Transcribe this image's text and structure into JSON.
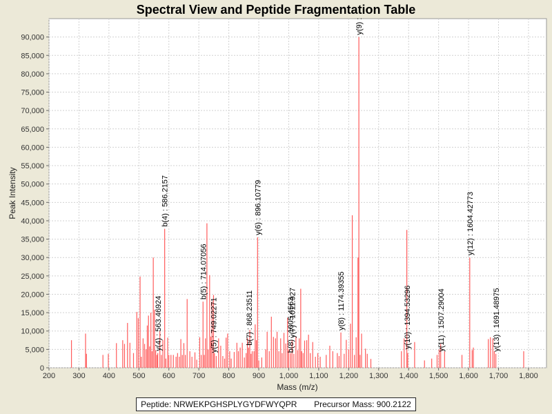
{
  "chart_data": {
    "type": "bar",
    "title": "Spectral View and Peptide Fragmentation Table",
    "xlabel": "Mass (m/z)",
    "ylabel": "Peak Intensity",
    "xlim": [
      200,
      1860
    ],
    "ylim": [
      0,
      95000
    ],
    "grid": true,
    "x_ticks": [
      200,
      300,
      400,
      500,
      600,
      700,
      800,
      900,
      1000,
      1100,
      1200,
      1300,
      1400,
      1500,
      1600,
      1700,
      1800
    ],
    "x_tick_labels": [
      "200",
      "300",
      "400",
      "500",
      "600",
      "700",
      "800",
      "900",
      "1,000",
      "1,100",
      "1,200",
      "1,300",
      "1,400",
      "1,500",
      "1,600",
      "1,700",
      "1,800"
    ],
    "y_ticks": [
      0,
      5000,
      10000,
      15000,
      20000,
      25000,
      30000,
      35000,
      40000,
      45000,
      50000,
      55000,
      60000,
      65000,
      70000,
      75000,
      80000,
      85000,
      90000
    ],
    "y_tick_labels": [
      "0",
      "5,000",
      "10,000",
      "15,000",
      "20,000",
      "25,000",
      "30,000",
      "35,000",
      "40,000",
      "45,000",
      "50,000",
      "55,000",
      "60,000",
      "65,000",
      "70,000",
      "75,000",
      "80,000",
      "85,000",
      "90,000"
    ],
    "peak_color": "#ff5a5a",
    "peaks": [
      [
        275,
        7500
      ],
      [
        322,
        9300
      ],
      [
        325,
        3800
      ],
      [
        380,
        3500
      ],
      [
        398,
        3800
      ],
      [
        425,
        6700
      ],
      [
        446,
        7500
      ],
      [
        452,
        6500
      ],
      [
        462,
        12200
      ],
      [
        470,
        6800
      ],
      [
        482,
        4000
      ],
      [
        493,
        15200
      ],
      [
        498,
        13500
      ],
      [
        504,
        24800
      ],
      [
        508,
        3000
      ],
      [
        514,
        8000
      ],
      [
        519,
        6500
      ],
      [
        524,
        5000
      ],
      [
        528,
        11500
      ],
      [
        532,
        14200
      ],
      [
        536,
        5800
      ],
      [
        540,
        15000
      ],
      [
        544,
        4500
      ],
      [
        548,
        30000
      ],
      [
        552,
        15800
      ],
      [
        556,
        4800
      ],
      [
        560,
        3500
      ],
      [
        563,
        4000
      ],
      [
        570,
        10000
      ],
      [
        575,
        3500
      ],
      [
        580,
        7500
      ],
      [
        586,
        37800
      ],
      [
        590,
        2500
      ],
      [
        596,
        8200
      ],
      [
        600,
        3500
      ],
      [
        607,
        3500
      ],
      [
        615,
        3500
      ],
      [
        624,
        3000
      ],
      [
        629,
        4000
      ],
      [
        635,
        3000
      ],
      [
        640,
        7800
      ],
      [
        645,
        3500
      ],
      [
        650,
        6700
      ],
      [
        655,
        3500
      ],
      [
        661,
        18700
      ],
      [
        670,
        4500
      ],
      [
        677,
        3000
      ],
      [
        687,
        4200
      ],
      [
        693,
        2200
      ],
      [
        703,
        8300
      ],
      [
        708,
        3500
      ],
      [
        714,
        18000
      ],
      [
        718,
        3500
      ],
      [
        722,
        8000
      ],
      [
        727,
        39300
      ],
      [
        731,
        5000
      ],
      [
        736,
        25200
      ],
      [
        740,
        8500
      ],
      [
        744,
        18000
      ],
      [
        749,
        19800
      ],
      [
        752,
        4000
      ],
      [
        758,
        3200
      ],
      [
        766,
        8000
      ],
      [
        773,
        6000
      ],
      [
        780,
        3200
      ],
      [
        786,
        2500
      ],
      [
        791,
        8200
      ],
      [
        796,
        9300
      ],
      [
        803,
        4500
      ],
      [
        808,
        2500
      ],
      [
        818,
        4300
      ],
      [
        827,
        6800
      ],
      [
        832,
        4500
      ],
      [
        838,
        5500
      ],
      [
        845,
        6800
      ],
      [
        852,
        2800
      ],
      [
        858,
        4000
      ],
      [
        862,
        8100
      ],
      [
        866,
        5500
      ],
      [
        870,
        10300
      ],
      [
        874,
        3800
      ],
      [
        878,
        4500
      ],
      [
        884,
        4500
      ],
      [
        888,
        11800
      ],
      [
        892,
        7500
      ],
      [
        896,
        35500
      ],
      [
        900,
        2000
      ],
      [
        910,
        2800
      ],
      [
        923,
        5000
      ],
      [
        928,
        9800
      ],
      [
        935,
        4500
      ],
      [
        942,
        13900
      ],
      [
        949,
        8400
      ],
      [
        956,
        8000
      ],
      [
        961,
        9800
      ],
      [
        967,
        4500
      ],
      [
        973,
        8000
      ],
      [
        978,
        4000
      ],
      [
        984,
        9500
      ],
      [
        990,
        6600
      ],
      [
        996,
        13600
      ],
      [
        1000,
        5000
      ],
      [
        1006,
        4000
      ],
      [
        1011,
        7500
      ],
      [
        1017,
        3800
      ],
      [
        1024,
        8500
      ],
      [
        1030,
        4800
      ],
      [
        1035,
        8000
      ],
      [
        1040,
        21500
      ],
      [
        1043,
        4500
      ],
      [
        1048,
        4000
      ],
      [
        1053,
        7400
      ],
      [
        1060,
        7500
      ],
      [
        1066,
        9000
      ],
      [
        1072,
        4000
      ],
      [
        1080,
        7000
      ],
      [
        1089,
        3000
      ],
      [
        1097,
        4000
      ],
      [
        1105,
        3000
      ],
      [
        1125,
        3500
      ],
      [
        1137,
        6000
      ],
      [
        1147,
        4500
      ],
      [
        1162,
        4000
      ],
      [
        1168,
        3200
      ],
      [
        1174,
        9600
      ],
      [
        1185,
        3800
      ],
      [
        1192,
        7600
      ],
      [
        1200,
        5000
      ],
      [
        1206,
        12000
      ],
      [
        1212,
        41500
      ],
      [
        1219,
        3500
      ],
      [
        1225,
        8300
      ],
      [
        1231,
        30000
      ],
      [
        1234,
        90000
      ],
      [
        1238,
        3500
      ],
      [
        1243,
        9300
      ],
      [
        1256,
        5200
      ],
      [
        1262,
        3800
      ],
      [
        1274,
        2400
      ],
      [
        1376,
        4500
      ],
      [
        1385,
        8000
      ],
      [
        1394,
        37500
      ],
      [
        1397,
        4000
      ],
      [
        1420,
        7000
      ],
      [
        1453,
        2000
      ],
      [
        1477,
        2500
      ],
      [
        1495,
        3500
      ],
      [
        1502,
        5000
      ],
      [
        1507,
        6500
      ],
      [
        1520,
        4500
      ],
      [
        1578,
        3500
      ],
      [
        1604,
        30000
      ],
      [
        1612,
        4800
      ],
      [
        1616,
        5500
      ],
      [
        1666,
        7800
      ],
      [
        1673,
        8300
      ],
      [
        1681,
        8000
      ],
      [
        1686,
        4500
      ],
      [
        1691,
        3800
      ],
      [
        1784,
        4500
      ]
    ],
    "annotations": [
      {
        "mz": 586.2157,
        "intensity": 37800,
        "label": "b(4) : 586.2157"
      },
      {
        "mz": 563.46924,
        "intensity": 4000,
        "label": "y(4) : 563.46924"
      },
      {
        "mz": 714.07056,
        "intensity": 18000,
        "label": "b(5) : 714.07056"
      },
      {
        "mz": 749.02271,
        "intensity": 3500,
        "label": "y(5) : 749.02271"
      },
      {
        "mz": 868.23511,
        "intensity": 5500,
        "label": "b(7) : 868.23511"
      },
      {
        "mz": 896.10779,
        "intensity": 35500,
        "label": "y(6) : 896.10779"
      },
      {
        "mz": 1005.4563,
        "intensity": 3500,
        "label": "b(8) : 1005.4563"
      },
      {
        "mz": 1011.927,
        "intensity": 7500,
        "label": "y(7) : 1011.927"
      },
      {
        "mz": 1174.39355,
        "intensity": 9600,
        "label": "y(8) : 1174.39355"
      },
      {
        "mz": 1234,
        "intensity": 90000,
        "label": "y(9) :"
      },
      {
        "mz": 1394.53296,
        "intensity": 4500,
        "label": "y(10) : 1394.53296"
      },
      {
        "mz": 1507.29004,
        "intensity": 3800,
        "label": "y(11) : 1507.29004"
      },
      {
        "mz": 1604.42773,
        "intensity": 30000,
        "label": "y(12) : 1604.42773"
      },
      {
        "mz": 1691.48975,
        "intensity": 3800,
        "label": "y(13) : 1691.48975"
      }
    ]
  },
  "footer": {
    "peptide_label": "Peptide: NRWEKPGHSPLYGYDFWYQPR",
    "precursor_label": "Precursor Mass: 900.2122"
  }
}
